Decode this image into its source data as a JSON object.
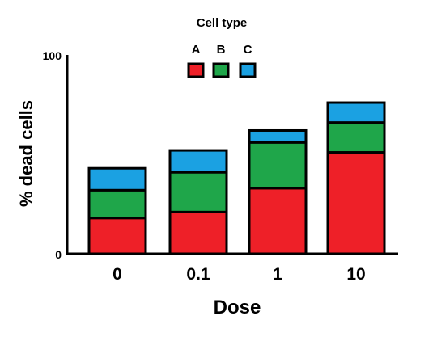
{
  "chart_data": {
    "type": "bar",
    "stacked": true,
    "title": "",
    "legend_title": "Cell type",
    "legend_position": "top",
    "xlabel": "Dose",
    "ylabel": "% dead cells",
    "categories": [
      "0",
      "0.1",
      "1",
      "10"
    ],
    "ylim": [
      0,
      100
    ],
    "yticks": [
      "0",
      "100"
    ],
    "grid": false,
    "series": [
      {
        "name": "A",
        "color": "#ee2028",
        "values": [
          18,
          21,
          33,
          51
        ]
      },
      {
        "name": "B",
        "color": "#1fa64a",
        "values": [
          14,
          20,
          23,
          15
        ]
      },
      {
        "name": "C",
        "color": "#1ba1e2",
        "values": [
          11,
          11,
          6,
          10
        ]
      }
    ]
  }
}
